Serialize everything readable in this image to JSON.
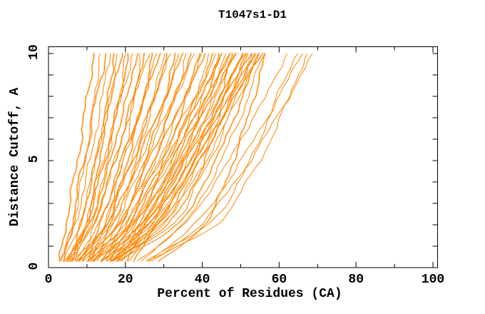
{
  "chart_data": {
    "type": "line",
    "title": "T1047s1-D1",
    "xlabel": "Percent of Residues (CA)",
    "ylabel": "Distance Cutoff, A",
    "xlim": [
      0,
      101.2
    ],
    "ylim": [
      0,
      10.35
    ],
    "x_ticks_labeled": [
      0,
      20,
      40,
      60,
      80,
      100
    ],
    "x_ticks_minor": [
      10,
      30,
      50,
      70,
      90
    ],
    "y_ticks_labeled": [
      0,
      5,
      10
    ],
    "y_ticks_minor": [
      1,
      2,
      3,
      4,
      6,
      7,
      8,
      9
    ],
    "grid": false,
    "legend": "none",
    "background": "#ffffff",
    "axis_color": "#000000",
    "line_color": "#ff8500",
    "cutoffs": [
      0.3,
      2,
      4,
      6,
      8,
      10
    ],
    "curves_note": "Each curve = one model; values are percent of CA residues within each distance cutoff (A), estimated from the dense plot.",
    "curves": [
      [
        3,
        4.5,
        6.5,
        8.5,
        10,
        12
      ],
      [
        3.5,
        6.5,
        8.5,
        10.5,
        12,
        13.5
      ],
      [
        4,
        6,
        8,
        10.5,
        12.5,
        15
      ],
      [
        3,
        7,
        9.5,
        12,
        14,
        16
      ],
      [
        5,
        10,
        12.5,
        14,
        15.5,
        17
      ],
      [
        4,
        8,
        11,
        13.5,
        16,
        18
      ],
      [
        6,
        8.5,
        11,
        13.5,
        16.5,
        19
      ],
      [
        4.5,
        11,
        14,
        16.5,
        18.5,
        20
      ],
      [
        5,
        9.5,
        13,
        16,
        18.5,
        21
      ],
      [
        7,
        9.5,
        12.5,
        16,
        19,
        22
      ],
      [
        5.5,
        10.5,
        14.5,
        17.5,
        20.5,
        23
      ],
      [
        8,
        14.5,
        18,
        20.5,
        22.5,
        24
      ],
      [
        6,
        11.5,
        15.5,
        19,
        22,
        25
      ],
      [
        9,
        12,
        15.5,
        19,
        22.5,
        26
      ],
      [
        6.5,
        15,
        19,
        22,
        25,
        27
      ],
      [
        7,
        13,
        17.5,
        21.5,
        25,
        28
      ],
      [
        10,
        13.5,
        17,
        21,
        25,
        29
      ],
      [
        7,
        16.5,
        21,
        24.5,
        27.5,
        30
      ],
      [
        8,
        15,
        19.5,
        24,
        27.5,
        31
      ],
      [
        11,
        14.5,
        19,
        23.5,
        27.5,
        32
      ],
      [
        8,
        18.5,
        23.5,
        27,
        30.5,
        33
      ],
      [
        9,
        16.5,
        21.5,
        26,
        30.5,
        34
      ],
      [
        12,
        16,
        21,
        25.5,
        30.5,
        35
      ],
      [
        9,
        20.5,
        25.5,
        29.5,
        33,
        36
      ],
      [
        10,
        18,
        23.5,
        28.5,
        33,
        37
      ],
      [
        13,
        17.5,
        22.5,
        27.5,
        33,
        38
      ],
      [
        10,
        22,
        28,
        32,
        36,
        39
      ],
      [
        11,
        19.5,
        26,
        31,
        35.5,
        40
      ],
      [
        14,
        19,
        24.5,
        30,
        35.5,
        41
      ],
      [
        11,
        24,
        30,
        35,
        38.5,
        42
      ],
      [
        12,
        21,
        28,
        33.5,
        38.5,
        43
      ],
      [
        15,
        20,
        26,
        32,
        38,
        44
      ],
      [
        12,
        25.5,
        32,
        37,
        41,
        44.5
      ],
      [
        13,
        22.5,
        29.5,
        35,
        40,
        45
      ],
      [
        16,
        21,
        27,
        33.5,
        39.5,
        45.5
      ],
      [
        13,
        27,
        33.5,
        38.5,
        42.5,
        46
      ],
      [
        14,
        24,
        31,
        36.5,
        42,
        47
      ],
      [
        17,
        22.5,
        28.5,
        35,
        41,
        47.5
      ],
      [
        14,
        28,
        35,
        40,
        44.5,
        48
      ],
      [
        15,
        25,
        32,
        38,
        43.5,
        48.5
      ],
      [
        18,
        23.5,
        30,
        36,
        42.5,
        49
      ],
      [
        15,
        29.5,
        36.5,
        42,
        46,
        50
      ],
      [
        16,
        26,
        33.5,
        40,
        45.5,
        50.5
      ],
      [
        19,
        24.5,
        31,
        38,
        44.5,
        51
      ],
      [
        16,
        31,
        38,
        43,
        47.5,
        51.5
      ],
      [
        17,
        27.5,
        35,
        41,
        47,
        52
      ],
      [
        20,
        25.5,
        32.5,
        39,
        46,
        52.5
      ],
      [
        17,
        32,
        39,
        44.5,
        49,
        53
      ],
      [
        18,
        28.5,
        36,
        42.5,
        48,
        53.5
      ],
      [
        21,
        27,
        33.5,
        40.5,
        47,
        54
      ],
      [
        18,
        33.5,
        40.5,
        46,
        50.5,
        54.5
      ],
      [
        19,
        29.5,
        37.5,
        44,
        49.5,
        55
      ],
      [
        22,
        28,
        35,
        41.5,
        48.5,
        55.5
      ],
      [
        23,
        35,
        42,
        47.5,
        52,
        56
      ],
      [
        29,
        40.5,
        46,
        50,
        53.5,
        56.5
      ],
      [
        24,
        35,
        43.5,
        50,
        56.5,
        62
      ],
      [
        25,
        41.5,
        49.5,
        55,
        59.5,
        64.5
      ],
      [
        26,
        38,
        46.5,
        53.5,
        60,
        66
      ],
      [
        26,
        43.5,
        51.5,
        58,
        62.5,
        67.5
      ],
      [
        27,
        39.5,
        48.5,
        56,
        62.5,
        69
      ]
    ]
  }
}
